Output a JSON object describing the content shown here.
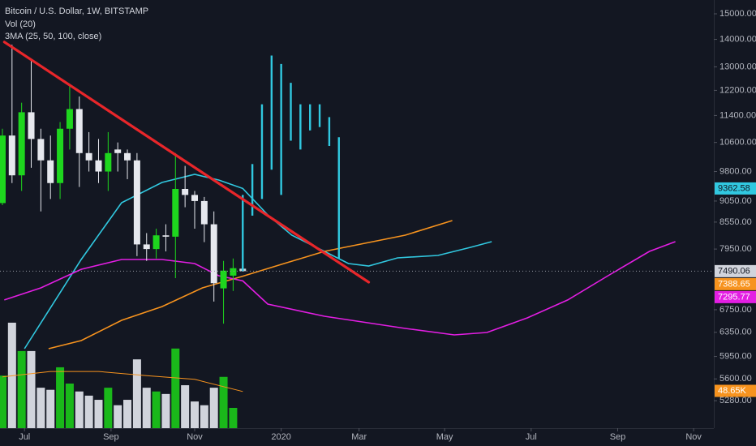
{
  "chart_data": {
    "type": "candlestick",
    "title": "Bitcoin / U.S. Dollar, 1W, BITSTAMP",
    "volume_label": "Vol (20)",
    "ma_label": "3MA (25, 50, 100, close)",
    "log_y": true,
    "grid": false,
    "xlim": [
      -0.25,
      74
    ],
    "xticks": [
      {
        "value": 2.3,
        "label": "Jul"
      },
      {
        "value": 11.3,
        "label": "Sep"
      },
      {
        "value": 20,
        "label": "Nov"
      },
      {
        "value": 29,
        "label": "2020"
      },
      {
        "value": 37.1,
        "label": "Mar"
      },
      {
        "value": 46,
        "label": "May"
      },
      {
        "value": 55,
        "label": "Jul"
      },
      {
        "value": 64,
        "label": "Sep"
      },
      {
        "value": 71.9,
        "label": "Nov"
      }
    ],
    "ylim": [
      4903,
      15569
    ],
    "yticks": [
      {
        "value": 15000,
        "label": "15000.00"
      },
      {
        "value": 14000,
        "label": "14000.00"
      },
      {
        "value": 13000,
        "label": "13000.00"
      },
      {
        "value": 12200,
        "label": "12200.00"
      },
      {
        "value": 11400,
        "label": "11400.00"
      },
      {
        "value": 10600,
        "label": "10600.00"
      },
      {
        "value": 9800,
        "label": "9800.00"
      },
      {
        "value": 9050,
        "label": "9050.00"
      },
      {
        "value": 8550,
        "label": "8550.00"
      },
      {
        "value": 7950,
        "label": "7950.00"
      },
      {
        "value": 6750,
        "label": "6750.00"
      },
      {
        "value": 6350,
        "label": "6350.00"
      },
      {
        "value": 5950,
        "label": "5950.00"
      },
      {
        "value": 5600,
        "label": "5600.00"
      },
      {
        "value": 5280,
        "label": "5280.00"
      }
    ],
    "y2lim": [
      0,
      1027
    ],
    "candles": {
      "up_color": "#1ed61e",
      "down_color": "#e6e8ee",
      "last_color": "#d1d4dc",
      "open": [
        9000,
        10800,
        9700,
        11500,
        10700,
        10100,
        9500,
        11000,
        11600,
        10300,
        10100,
        9800,
        10400,
        10300,
        10100,
        8050,
        7950,
        8250,
        8220,
        9350,
        9200,
        9050,
        8500,
        7150,
        7400,
        7540
      ],
      "high": [
        11000,
        13800,
        11800,
        13200,
        11000,
        10800,
        11200,
        12400,
        12000,
        10900,
        10700,
        10900,
        10600,
        10400,
        10300,
        8300,
        8400,
        8500,
        10300,
        9950,
        9300,
        9150,
        8800,
        7700,
        7750,
        7560
      ],
      "low": [
        8950,
        9500,
        9300,
        9900,
        8800,
        9100,
        9100,
        10400,
        9400,
        9800,
        9500,
        9300,
        9800,
        9600,
        7800,
        7700,
        7750,
        7900,
        7350,
        8900,
        8400,
        8100,
        6900,
        6500,
        7100,
        7480
      ],
      "close": [
        10800,
        9700,
        11500,
        10700,
        10100,
        9500,
        11000,
        11600,
        10300,
        10100,
        9800,
        10300,
        10300,
        10100,
        8050,
        7950,
        8250,
        8220,
        9350,
        9200,
        9050,
        8500,
        7250,
        7500,
        7550,
        7490.06
      ]
    },
    "projection": {
      "color": "#31c8e0",
      "x": [
        25,
        26,
        27,
        28,
        29,
        30,
        31,
        32,
        33,
        34,
        35
      ],
      "high": [
        9200,
        10000,
        11750,
        13400,
        13100,
        12450,
        11750,
        11750,
        11750,
        11350,
        10750
      ],
      "low": [
        7490,
        8700,
        9100,
        9850,
        9200,
        10650,
        10400,
        10950,
        11050,
        10500,
        7750
      ]
    },
    "series": [
      {
        "color": "#31c8e0",
        "x": [
          2.3,
          8.2,
          12.4,
          16.6,
          20,
          22.5,
          25,
          27.6,
          30.1,
          33.5,
          36,
          38.1,
          41.1,
          45.3,
          48.7,
          50.9
        ],
        "values": [
          6076,
          7730,
          9009,
          9516,
          9726,
          9578,
          9362.58,
          8718,
          8254,
          7901,
          7645,
          7595,
          7764,
          7814,
          7988,
          8111
        ]
      },
      {
        "color": "#f7931e",
        "x": [
          4.8,
          8.2,
          12.4,
          16.6,
          20.8,
          25,
          29.3,
          33.5,
          37.7,
          41.9,
          46.8
        ],
        "values": [
          6076,
          6210,
          6560,
          6807,
          7160,
          7388.65,
          7645,
          7901,
          8075,
          8254,
          8586
        ]
      },
      {
        "color": "#e31ee3",
        "x": [
          0.2,
          4,
          8.2,
          12.4,
          16.6,
          20,
          22.5,
          25,
          27.6,
          33.5,
          41.9,
          47,
          50.4,
          54.6,
          58.8,
          63,
          67.3,
          70
        ],
        "values": [
          6929,
          7160,
          7528,
          7730,
          7730,
          7645,
          7398,
          7295.77,
          6853,
          6631,
          6418,
          6306,
          6348,
          6603,
          6929,
          7398,
          7901,
          8111
        ]
      }
    ],
    "volume": {
      "axis": "y2",
      "up_color": "#1ab81a",
      "down_color": "#d1d4dc",
      "label_color": "#f7931e",
      "values": [
        126,
        253,
        185,
        185,
        97,
        92,
        146,
        107,
        88,
        78,
        68,
        97,
        55,
        68,
        165,
        97,
        88,
        82,
        191,
        103,
        64,
        55,
        97,
        123,
        48.65,
        null
      ],
      "value_labels": [
        null,
        null,
        null,
        null,
        null,
        null,
        null,
        null,
        null,
        null,
        null,
        null,
        null,
        null,
        null,
        null,
        null,
        null,
        null,
        null,
        null,
        null,
        null,
        null,
        "48.65K",
        null
      ],
      "ma": {
        "color": "#f7931e",
        "x": [
          0,
          5,
          10,
          15,
          20,
          25
        ],
        "values": [
          123,
          136,
          136,
          126,
          117,
          88
        ]
      }
    },
    "trendline": {
      "color": "#e8262a",
      "x": [
        0.2,
        38.1
      ],
      "values": [
        13900,
        7270
      ]
    }
  }
}
